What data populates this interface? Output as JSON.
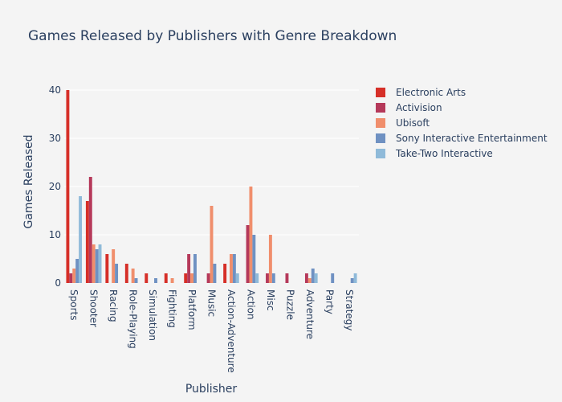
{
  "colors": {
    "background": "#f4f4f4",
    "grid": "#ffffff",
    "text": "#2a3f5f"
  },
  "chart_data": {
    "type": "bar",
    "title": "Games Released by Publishers with Genre Breakdown",
    "xlabel": "Publisher",
    "ylabel": "Games Released",
    "ylim": [
      0,
      42
    ],
    "yticks": [
      0,
      10,
      20,
      30,
      40
    ],
    "grid": true,
    "legend_position": "top-right",
    "categories": [
      "Sports",
      "Shooter",
      "Racing",
      "Role-Playing",
      "Simulation",
      "Fighting",
      "Platform",
      "Music",
      "Action-Adventure",
      "Action",
      "Misc",
      "Puzzle",
      "Adventure",
      "Party",
      "Strategy"
    ],
    "series": [
      {
        "name": "Electronic Arts",
        "color": "#d62f28",
        "values": [
          40,
          17,
          6,
          4,
          2,
          2,
          2,
          0,
          4,
          0,
          0,
          0,
          0,
          0,
          0
        ]
      },
      {
        "name": "Activision",
        "color": "#b5395a",
        "values": [
          2,
          22,
          0,
          0,
          0,
          0,
          6,
          2,
          0,
          12,
          2,
          2,
          2,
          0,
          0
        ]
      },
      {
        "name": "Ubisoft",
        "color": "#f08e6c",
        "values": [
          3,
          8,
          7,
          3,
          0,
          1,
          2,
          16,
          6,
          20,
          10,
          0,
          1,
          0,
          0
        ]
      },
      {
        "name": "Sony Interactive Entertainment",
        "color": "#6f91c2",
        "values": [
          5,
          7,
          4,
          1,
          1,
          0,
          6,
          4,
          6,
          10,
          2,
          0,
          3,
          2,
          1
        ]
      },
      {
        "name": "Take-Two Interactive",
        "color": "#8fbad9",
        "values": [
          18,
          8,
          0,
          0,
          0,
          0,
          0,
          0,
          2,
          2,
          0,
          0,
          2,
          0,
          2
        ]
      }
    ]
  }
}
